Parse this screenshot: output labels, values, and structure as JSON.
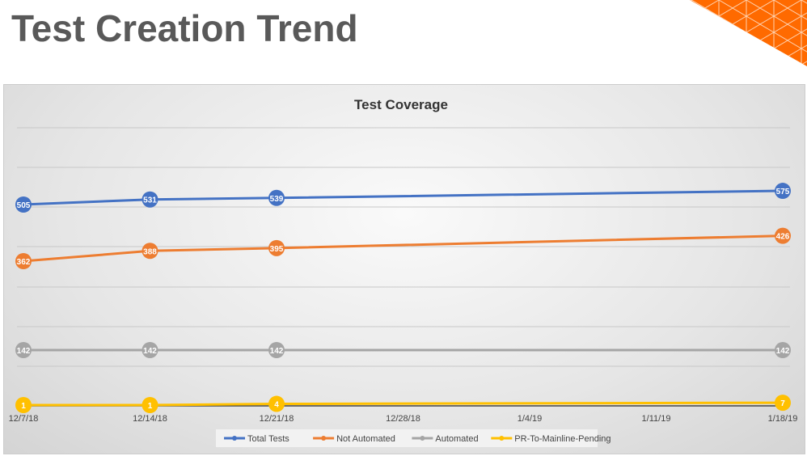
{
  "slide": {
    "title": "Test Creation Trend"
  },
  "chart_data": {
    "type": "line",
    "title": "Test Coverage",
    "x": [
      "12/7/18",
      "12/14/18",
      "12/21/18",
      "1/18/19"
    ],
    "x_ticks": [
      "12/7/18",
      "12/14/18",
      "12/21/18",
      "12/28/18",
      "1/4/19",
      "1/11/19",
      "1/18/19"
    ],
    "grid": true,
    "legend_position": "bottom",
    "data_labels": true,
    "series": [
      {
        "name": "Total Tests",
        "color": "#4472C4",
        "values": [
          505,
          531,
          539,
          575
        ]
      },
      {
        "name": "Not Automated",
        "color": "#ED7D31",
        "values": [
          362,
          388,
          395,
          426
        ]
      },
      {
        "name": "Automated",
        "color": "#A5A5A5",
        "values": [
          142,
          142,
          142,
          142
        ]
      },
      {
        "name": "PR-To-Mainline-Pending",
        "color": "#FFC000",
        "values": [
          1,
          1,
          4,
          7
        ]
      }
    ]
  }
}
